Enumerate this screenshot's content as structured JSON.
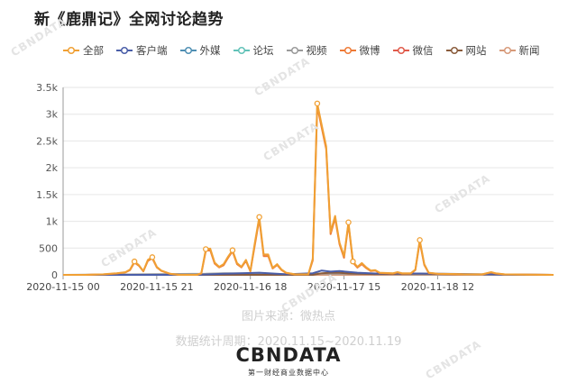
{
  "title": "新《鹿鼎记》全网讨论趋势",
  "source_note": "图片来源：微热点",
  "period_note": "数据统计周期：2020.11.15~2020.11.19",
  "brand": {
    "logo": "CBNDATA",
    "tagline": "第一财经商业数据中心"
  },
  "watermark": "CBNDATA",
  "chart_data": {
    "type": "line",
    "title": "新《鹿鼎记》全网讨论趋势",
    "xlabel": "",
    "ylabel": "",
    "ylim": [
      0,
      3500
    ],
    "yticks": [
      0,
      500,
      1000,
      1500,
      2000,
      2500,
      3000,
      3500
    ],
    "ytick_labels": [
      "0",
      "500",
      "1k",
      "1.5k",
      "2k",
      "2.5k",
      "3k",
      "3.5k"
    ],
    "x_range_hours": [
      0,
      110
    ],
    "xticks": [
      0,
      21,
      42,
      63,
      84
    ],
    "xtick_labels": [
      "2020-11-15 00",
      "2020-11-15 21",
      "2020-11-16 18",
      "2020-11-17 15",
      "2020-11-18 12"
    ],
    "grid": "horizontal",
    "legend_position": "top",
    "series": [
      {
        "name": "全部",
        "color": "#f0a034",
        "points": [
          [
            0,
            0
          ],
          [
            5,
            0
          ],
          [
            9,
            10
          ],
          [
            12,
            30
          ],
          [
            14,
            50
          ],
          [
            15,
            100
          ],
          [
            16,
            250
          ],
          [
            17,
            180
          ],
          [
            18,
            70
          ],
          [
            19,
            280
          ],
          [
            20,
            330
          ],
          [
            21,
            150
          ],
          [
            22,
            80
          ],
          [
            24,
            20
          ],
          [
            26,
            0
          ],
          [
            30,
            0
          ],
          [
            31,
            30
          ],
          [
            32,
            480
          ],
          [
            33,
            490
          ],
          [
            34,
            230
          ],
          [
            35,
            150
          ],
          [
            36,
            200
          ],
          [
            37,
            340
          ],
          [
            38,
            460
          ],
          [
            39,
            220
          ],
          [
            40,
            150
          ],
          [
            41,
            280
          ],
          [
            42,
            70
          ],
          [
            43,
            600
          ],
          [
            44,
            1080
          ],
          [
            45,
            380
          ],
          [
            46,
            380
          ],
          [
            47,
            130
          ],
          [
            48,
            200
          ],
          [
            49,
            100
          ],
          [
            50,
            40
          ],
          [
            52,
            10
          ],
          [
            55,
            10
          ],
          [
            56,
            300
          ],
          [
            57,
            3200
          ],
          [
            58,
            2800
          ],
          [
            59,
            2400
          ],
          [
            60,
            800
          ],
          [
            61,
            1100
          ],
          [
            62,
            600
          ],
          [
            63,
            350
          ],
          [
            64,
            980
          ],
          [
            65,
            250
          ],
          [
            66,
            150
          ],
          [
            67,
            220
          ],
          [
            68,
            140
          ],
          [
            69,
            80
          ],
          [
            70,
            90
          ],
          [
            71,
            40
          ],
          [
            74,
            30
          ],
          [
            75,
            50
          ],
          [
            76,
            30
          ],
          [
            78,
            30
          ],
          [
            79,
            100
          ],
          [
            80,
            650
          ],
          [
            81,
            200
          ],
          [
            82,
            40
          ],
          [
            84,
            20
          ],
          [
            88,
            15
          ],
          [
            90,
            10
          ],
          [
            94,
            10
          ],
          [
            96,
            50
          ],
          [
            97,
            30
          ],
          [
            99,
            10
          ],
          [
            104,
            5
          ],
          [
            110,
            0
          ]
        ]
      },
      {
        "name": "客户端",
        "color": "#4a5ea8",
        "points": [
          [
            0,
            0
          ],
          [
            30,
            0
          ],
          [
            36,
            20
          ],
          [
            44,
            40
          ],
          [
            50,
            10
          ],
          [
            56,
            30
          ],
          [
            58,
            80
          ],
          [
            60,
            60
          ],
          [
            62,
            70
          ],
          [
            64,
            55
          ],
          [
            66,
            40
          ],
          [
            70,
            25
          ],
          [
            80,
            25
          ],
          [
            90,
            15
          ],
          [
            100,
            5
          ],
          [
            110,
            0
          ]
        ]
      },
      {
        "name": "外媒",
        "color": "#4f8fb3",
        "points": [
          [
            0,
            0
          ],
          [
            110,
            0
          ]
        ]
      },
      {
        "name": "论坛",
        "color": "#62c2b8",
        "points": [
          [
            0,
            0
          ],
          [
            110,
            0
          ]
        ]
      },
      {
        "name": "视频",
        "color": "#9a9a9a",
        "points": [
          [
            0,
            0
          ],
          [
            32,
            20
          ],
          [
            36,
            30
          ],
          [
            44,
            25
          ],
          [
            50,
            10
          ],
          [
            58,
            25
          ],
          [
            64,
            20
          ],
          [
            72,
            10
          ],
          [
            90,
            5
          ],
          [
            110,
            0
          ]
        ]
      },
      {
        "name": "微博",
        "color": "#ee7a36",
        "points": [
          [
            0,
            0
          ],
          [
            5,
            0
          ],
          [
            9,
            8
          ],
          [
            12,
            25
          ],
          [
            14,
            45
          ],
          [
            15,
            90
          ],
          [
            16,
            230
          ],
          [
            17,
            170
          ],
          [
            18,
            65
          ],
          [
            19,
            260
          ],
          [
            20,
            310
          ],
          [
            21,
            140
          ],
          [
            22,
            75
          ],
          [
            24,
            18
          ],
          [
            26,
            0
          ],
          [
            30,
            0
          ],
          [
            31,
            25
          ],
          [
            32,
            450
          ],
          [
            33,
            460
          ],
          [
            34,
            210
          ],
          [
            35,
            140
          ],
          [
            36,
            180
          ],
          [
            37,
            320
          ],
          [
            38,
            440
          ],
          [
            39,
            200
          ],
          [
            40,
            140
          ],
          [
            41,
            260
          ],
          [
            42,
            65
          ],
          [
            43,
            560
          ],
          [
            44,
            1040
          ],
          [
            45,
            350
          ],
          [
            46,
            350
          ],
          [
            47,
            120
          ],
          [
            48,
            185
          ],
          [
            49,
            90
          ],
          [
            50,
            35
          ],
          [
            52,
            8
          ],
          [
            55,
            8
          ],
          [
            56,
            270
          ],
          [
            57,
            3150
          ],
          [
            58,
            2750
          ],
          [
            59,
            2350
          ],
          [
            60,
            760
          ],
          [
            61,
            1060
          ],
          [
            62,
            570
          ],
          [
            63,
            320
          ],
          [
            64,
            950
          ],
          [
            65,
            230
          ],
          [
            66,
            135
          ],
          [
            67,
            200
          ],
          [
            68,
            125
          ],
          [
            69,
            70
          ],
          [
            70,
            80
          ],
          [
            71,
            35
          ],
          [
            74,
            25
          ],
          [
            75,
            45
          ],
          [
            76,
            25
          ],
          [
            78,
            25
          ],
          [
            79,
            90
          ],
          [
            80,
            620
          ],
          [
            81,
            185
          ],
          [
            82,
            35
          ],
          [
            84,
            18
          ],
          [
            88,
            12
          ],
          [
            90,
            8
          ],
          [
            94,
            8
          ],
          [
            96,
            45
          ],
          [
            97,
            25
          ],
          [
            99,
            8
          ],
          [
            104,
            4
          ],
          [
            110,
            0
          ]
        ]
      },
      {
        "name": "微信",
        "color": "#e05a4a",
        "points": [
          [
            0,
            0
          ],
          [
            110,
            0
          ]
        ]
      },
      {
        "name": "网站",
        "color": "#8a5c3c",
        "points": [
          [
            0,
            0
          ],
          [
            56,
            0
          ],
          [
            58,
            30
          ],
          [
            60,
            40
          ],
          [
            62,
            40
          ],
          [
            64,
            25
          ],
          [
            70,
            15
          ],
          [
            80,
            20
          ],
          [
            90,
            10
          ],
          [
            110,
            0
          ]
        ]
      },
      {
        "name": "新闻",
        "color": "#d79a7a",
        "points": [
          [
            0,
            0
          ],
          [
            110,
            0
          ]
        ]
      }
    ]
  }
}
